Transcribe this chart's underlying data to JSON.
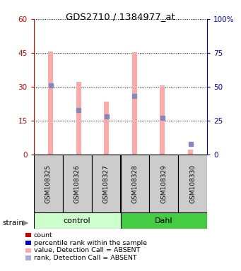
{
  "title": "GDS2710 / 1384977_at",
  "samples": [
    "GSM108325",
    "GSM108326",
    "GSM108327",
    "GSM108328",
    "GSM108329",
    "GSM108330"
  ],
  "groups": [
    "control",
    "control",
    "control",
    "Dahl",
    "Dahl",
    "Dahl"
  ],
  "pink_bars": [
    45.5,
    32.0,
    23.5,
    45.2,
    30.5,
    2.0
  ],
  "blue_marks_pct": [
    51,
    33,
    28,
    43,
    27,
    8
  ],
  "ylim_left": [
    0,
    60
  ],
  "ylim_right": [
    0,
    100
  ],
  "yticks_left": [
    0,
    15,
    30,
    45,
    60
  ],
  "ytick_labels_left": [
    "0",
    "15",
    "30",
    "45",
    "60"
  ],
  "yticks_right": [
    0,
    25,
    50,
    75,
    100
  ],
  "ytick_labels_right": [
    "0",
    "25",
    "50",
    "75",
    "100%"
  ],
  "left_color": "#cc0000",
  "right_color": "#0000cc",
  "pink_color": "#ffaaaa",
  "blue_color": "#8888bb",
  "control_light": "#ccffcc",
  "dahl_dark": "#44cc44",
  "bar_width": 0.18,
  "legend_items": [
    {
      "label": "count",
      "color": "#cc0000"
    },
    {
      "label": "percentile rank within the sample",
      "color": "#0000cc"
    },
    {
      "label": "value, Detection Call = ABSENT",
      "color": "#ffaaaa"
    },
    {
      "label": "rank, Detection Call = ABSENT",
      "color": "#aaaadd"
    }
  ]
}
